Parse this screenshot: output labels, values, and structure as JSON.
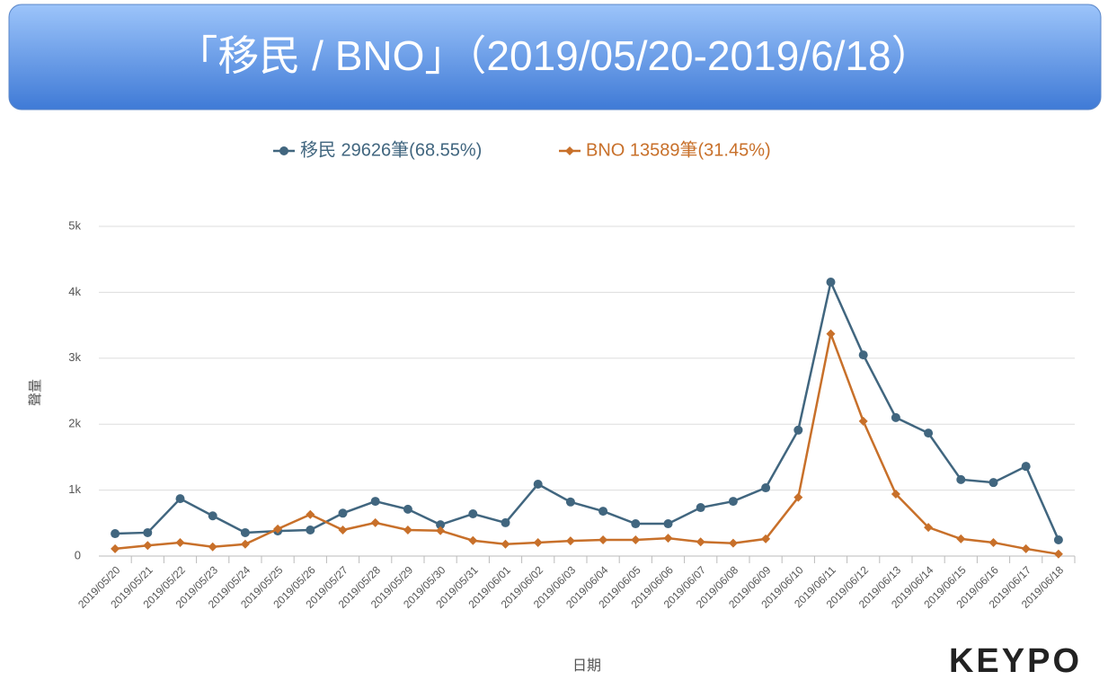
{
  "title": "「移民 / BNO」（2019/05/20-2019/6/18）",
  "logo": "KEYPO",
  "chart_data": {
    "type": "line",
    "x_label": "日期",
    "y_label": "聲量",
    "categories": [
      "2019/05/20",
      "2019/05/21",
      "2019/05/22",
      "2019/05/23",
      "2019/05/24",
      "2019/05/25",
      "2019/05/26",
      "2019/05/27",
      "2019/05/28",
      "2019/05/29",
      "2019/05/30",
      "2019/05/31",
      "2019/06/01",
      "2019/06/02",
      "2019/06/03",
      "2019/06/04",
      "2019/06/05",
      "2019/06/06",
      "2019/06/07",
      "2019/06/08",
      "2019/06/09",
      "2019/06/10",
      "2019/06/11",
      "2019/06/12",
      "2019/06/13",
      "2019/06/14",
      "2019/06/15",
      "2019/06/16",
      "2019/06/17",
      "2019/06/18"
    ],
    "series": [
      {
        "name": "移民 29626筆(68.55%)",
        "color": "#41667f",
        "marker": "circle",
        "values": [
          340,
          355,
          870,
          610,
          355,
          380,
          395,
          650,
          830,
          710,
          475,
          640,
          505,
          1090,
          820,
          680,
          490,
          490,
          735,
          830,
          1035,
          1910,
          4155,
          3050,
          2100,
          1865,
          1160,
          1115,
          1360,
          245
        ]
      },
      {
        "name": "BNO 13589筆(31.45%)",
        "color": "#c8702a",
        "marker": "diamond",
        "values": [
          110,
          160,
          205,
          140,
          180,
          410,
          630,
          395,
          505,
          395,
          385,
          235,
          180,
          205,
          230,
          245,
          245,
          270,
          215,
          195,
          260,
          890,
          3370,
          2045,
          940,
          435,
          260,
          205,
          110,
          30
        ]
      }
    ],
    "ylim": [
      0,
      5000
    ],
    "yticks": [
      {
        "value": 0,
        "label": "0"
      },
      {
        "value": 1000,
        "label": "1k"
      },
      {
        "value": 2000,
        "label": "2k"
      },
      {
        "value": 3000,
        "label": "3k"
      },
      {
        "value": 4000,
        "label": "4k"
      },
      {
        "value": 5000,
        "label": "5k"
      }
    ],
    "grid": true,
    "legend": "top"
  }
}
